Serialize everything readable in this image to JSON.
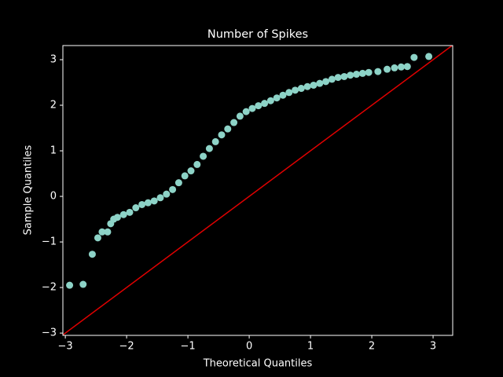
{
  "chart_data": {
    "type": "scatter",
    "title": "Number of Spikes",
    "x_label": "Theoretical Quantiles",
    "y_label": "Sample Quantiles",
    "xlim": [
      -3.04,
      3.32
    ],
    "ylim": [
      -3.05,
      3.31
    ],
    "xticks": [
      {
        "value": -3,
        "label": "−3"
      },
      {
        "value": -2,
        "label": "−2"
      },
      {
        "value": -1,
        "label": "−1"
      },
      0,
      1,
      2,
      3
    ],
    "yticks": [
      {
        "value": -3,
        "label": "−3"
      },
      {
        "value": -2,
        "label": "−2"
      },
      {
        "value": -1,
        "label": "−1"
      },
      0,
      1,
      2,
      3
    ],
    "series": [
      {
        "color": "#8dd3c7",
        "x": [
          -2.93,
          -2.71,
          -2.56,
          -2.47,
          -2.4,
          -2.31,
          -2.26,
          -2.21,
          -2.15,
          -2.05,
          -1.95,
          -1.85,
          -1.75,
          -1.65,
          -1.55,
          -1.45,
          -1.35,
          -1.25,
          -1.15,
          -1.05,
          -0.95,
          -0.85,
          -0.75,
          -0.65,
          -0.55,
          -0.45,
          -0.35,
          -0.25,
          -0.15,
          -0.05,
          0.05,
          0.15,
          0.25,
          0.35,
          0.45,
          0.55,
          0.65,
          0.75,
          0.85,
          0.95,
          1.05,
          1.15,
          1.25,
          1.35,
          1.45,
          1.55,
          1.65,
          1.75,
          1.85,
          1.95,
          2.1,
          2.25,
          2.37,
          2.48,
          2.58,
          2.69,
          2.93
        ],
        "values": [
          -1.95,
          -1.93,
          -1.27,
          -0.91,
          -0.78,
          -0.78,
          -0.6,
          -0.5,
          -0.46,
          -0.4,
          -0.35,
          -0.25,
          -0.18,
          -0.14,
          -0.1,
          -0.03,
          0.05,
          0.15,
          0.3,
          0.45,
          0.56,
          0.7,
          0.88,
          1.05,
          1.2,
          1.35,
          1.48,
          1.62,
          1.76,
          1.86,
          1.93,
          1.99,
          2.04,
          2.1,
          2.16,
          2.22,
          2.28,
          2.33,
          2.37,
          2.41,
          2.44,
          2.48,
          2.52,
          2.57,
          2.61,
          2.63,
          2.66,
          2.68,
          2.7,
          2.72,
          2.74,
          2.79,
          2.82,
          2.84,
          2.85,
          3.05,
          3.07
        ]
      },
      {
        "type": "line",
        "color": "#e00000",
        "x": [
          -3.04,
          3.32
        ],
        "values": [
          -3.04,
          3.32
        ]
      }
    ]
  }
}
